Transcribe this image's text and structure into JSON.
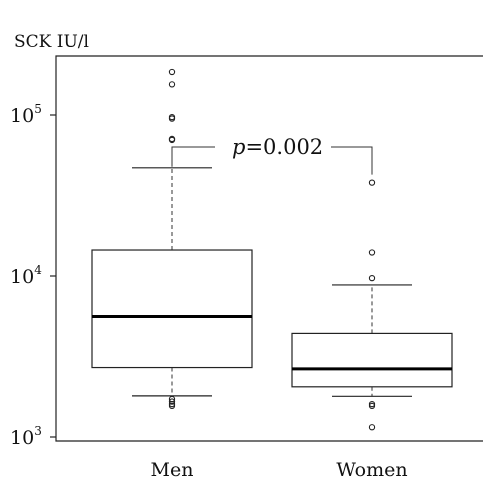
{
  "chart_data": {
    "type": "box",
    "y_unit_label": "SCK IU/l",
    "y_scale": "log10",
    "y_range": [
      1000,
      220000
    ],
    "y_ticks": [
      {
        "value": 1000,
        "base": "10",
        "exp": "3"
      },
      {
        "value": 10000,
        "base": "10",
        "exp": "4"
      },
      {
        "value": 100000,
        "base": "10",
        "exp": "5"
      }
    ],
    "categories": [
      "Men",
      "Women"
    ],
    "boxes": [
      {
        "category": "Men",
        "whisker_low": 1800,
        "q1": 2700,
        "median": 5600,
        "q3": 14500,
        "whisker_high": 47000,
        "outliers": [
          1560,
          1600,
          1660,
          1720,
          70000,
          71000,
          95000,
          97000,
          155000,
          185000
        ]
      },
      {
        "category": "Women",
        "whisker_low": 1790,
        "q1": 2050,
        "median": 2650,
        "q3": 4400,
        "whisker_high": 8800,
        "outliers": [
          1150,
          1560,
          1600,
          9700,
          14000,
          38000
        ]
      }
    ],
    "annotation": {
      "italic": "p",
      "rest": "=0.002"
    },
    "grid": false,
    "legend": "none"
  }
}
